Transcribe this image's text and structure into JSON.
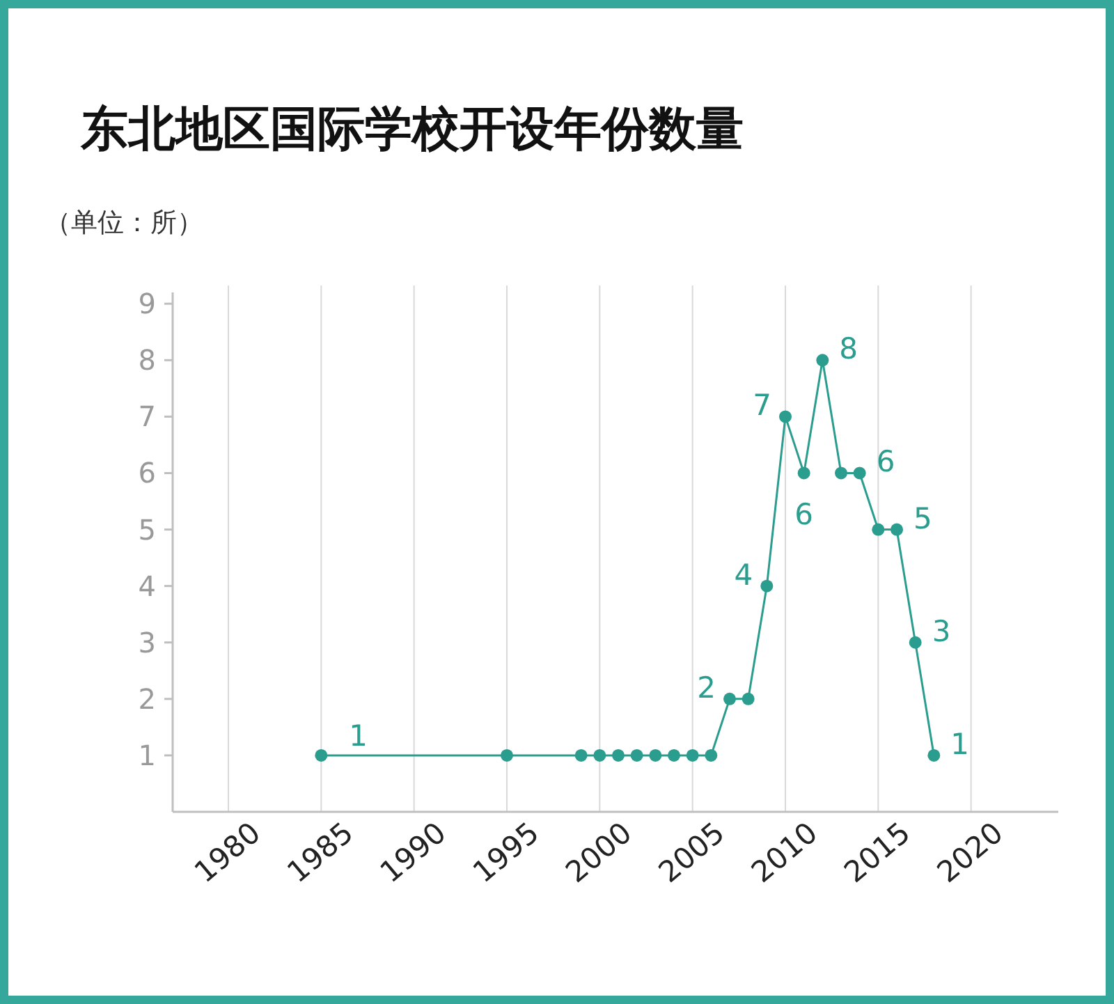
{
  "chart_data": {
    "type": "line",
    "title": "东北地区国际学校开设年份数量",
    "annotations": [
      "（单位：所）"
    ],
    "x": [
      1985,
      1995,
      1999,
      2000,
      2001,
      2002,
      2003,
      2004,
      2005,
      2006,
      2007,
      2008,
      2009,
      2010,
      2011,
      2012,
      2013,
      2014,
      2015,
      2016,
      2017,
      2018
    ],
    "series": [
      {
        "color": "#2a9d8f",
        "values": [
          1,
          1,
          1,
          1,
          1,
          1,
          1,
          1,
          1,
          1,
          2,
          2,
          4,
          7,
          6,
          8,
          6,
          6,
          5,
          5,
          3,
          1
        ],
        "value_labels": [
          "1",
          null,
          null,
          null,
          null,
          null,
          null,
          null,
          null,
          null,
          "2",
          null,
          "4",
          "7",
          "6",
          "8",
          null,
          "6",
          null,
          "5",
          "3",
          "1"
        ]
      }
    ],
    "xlim": [
      1977,
      2024.7
    ],
    "xticks": [
      1980,
      1985,
      1990,
      1995,
      2000,
      2005,
      2010,
      2015,
      2020
    ],
    "ylim": [
      0,
      9.2
    ],
    "yticks": [
      1,
      2,
      3,
      4,
      5,
      6,
      7,
      8,
      9
    ],
    "grid": "x",
    "marker": "circle",
    "line_style": "solid"
  }
}
